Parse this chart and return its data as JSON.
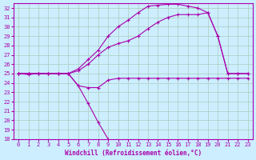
{
  "bg_color": "#cceeff",
  "grid_color": "#aaccbb",
  "line_color": "#aa00aa",
  "xlabel": "Windchill (Refroidissement éolien,°C)",
  "xlim": [
    -0.5,
    23.5
  ],
  "ylim": [
    18,
    32.5
  ],
  "xticks": [
    0,
    1,
    2,
    3,
    4,
    5,
    6,
    7,
    8,
    9,
    10,
    11,
    12,
    13,
    14,
    15,
    16,
    17,
    18,
    19,
    20,
    21,
    22,
    23
  ],
  "yticks": [
    18,
    19,
    20,
    21,
    22,
    23,
    24,
    25,
    26,
    27,
    28,
    29,
    30,
    31,
    32
  ],
  "line1_x": [
    0,
    1,
    2,
    3,
    4,
    5,
    6,
    7,
    8,
    9
  ],
  "line1_y": [
    25,
    24.9,
    25,
    25,
    25,
    25,
    23.7,
    21.8,
    19.8,
    18
  ],
  "line2_x": [
    0,
    1,
    2,
    3,
    4,
    5,
    6,
    7,
    8,
    9,
    10,
    11,
    12,
    13,
    14,
    15,
    16,
    17,
    18,
    19,
    20,
    21,
    22,
    23
  ],
  "line2_y": [
    25,
    25,
    25,
    25,
    25,
    25,
    23.7,
    23.5,
    23.5,
    24.3,
    24.5,
    24.5,
    24.5,
    24.5,
    24.5,
    24.5,
    24.5,
    24.5,
    24.5,
    24.5,
    24.5,
    24.5,
    24.5,
    24.5
  ],
  "line3_x": [
    0,
    1,
    2,
    3,
    4,
    5,
    6,
    7,
    8,
    9,
    10,
    11,
    12,
    13,
    14,
    15,
    16,
    17,
    18,
    19,
    20,
    21,
    22,
    23
  ],
  "line3_y": [
    25,
    25,
    25,
    25,
    25,
    25,
    25.3,
    26.0,
    27.0,
    27.8,
    28.2,
    28.5,
    29.0,
    29.8,
    30.5,
    31.0,
    31.3,
    31.3,
    31.3,
    31.5,
    29.0,
    25,
    25,
    25
  ],
  "line4_x": [
    0,
    1,
    2,
    3,
    4,
    5,
    6,
    7,
    8,
    9,
    10,
    11,
    12,
    13,
    14,
    15,
    16,
    17,
    18,
    19,
    20,
    21,
    22,
    23
  ],
  "line4_y": [
    25,
    25,
    25,
    25,
    25,
    25,
    25.5,
    26.5,
    27.5,
    29.0,
    30.0,
    30.7,
    31.5,
    32.2,
    32.3,
    32.4,
    32.4,
    32.2,
    32.0,
    31.5,
    29.0,
    25,
    25,
    25
  ]
}
